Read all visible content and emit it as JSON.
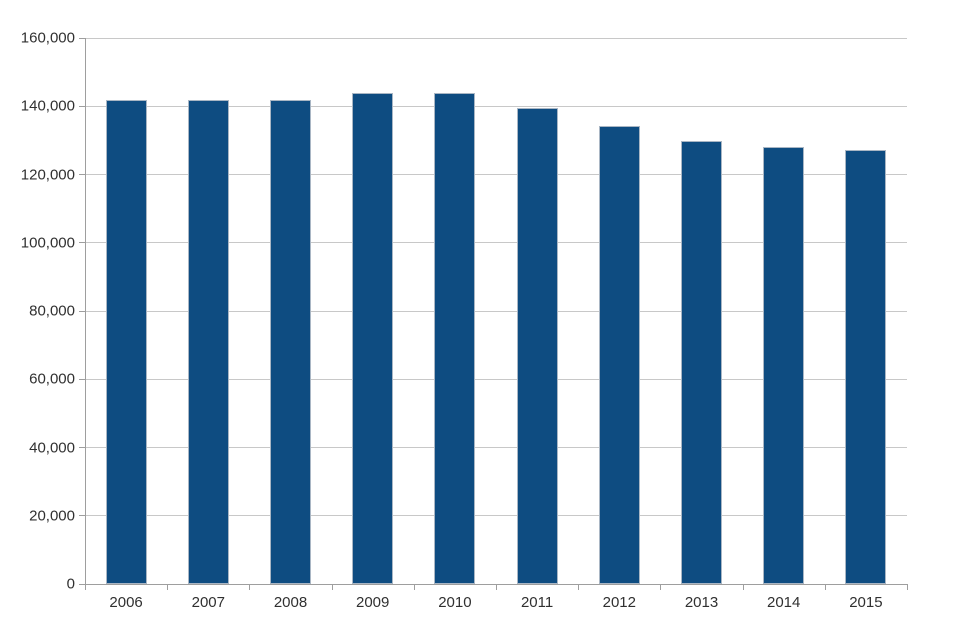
{
  "chart_data": {
    "type": "bar",
    "title": "",
    "xlabel": "",
    "ylabel": "",
    "categories": [
      "2006",
      "2007",
      "2008",
      "2009",
      "2010",
      "2011",
      "2012",
      "2013",
      "2014",
      "2015"
    ],
    "values": [
      141800,
      141900,
      141900,
      143900,
      143900,
      139400,
      134100,
      129800,
      128200,
      127100
    ],
    "ylim": [
      0,
      160000
    ],
    "ytick_interval": 20000,
    "ytick_labels": [
      "0",
      "20,000",
      "40,000",
      "60,000",
      "80,000",
      "100,000",
      "120,000",
      "140,000",
      "160,000"
    ],
    "grid": "horizontal-only",
    "legend": "none",
    "colors": {
      "bar_fill": "#0e4c81",
      "bar_edge": "#a9b6c4",
      "gridline": "#c8c8c8",
      "axis": "#9e9e9e",
      "label_text": "#303030"
    }
  }
}
